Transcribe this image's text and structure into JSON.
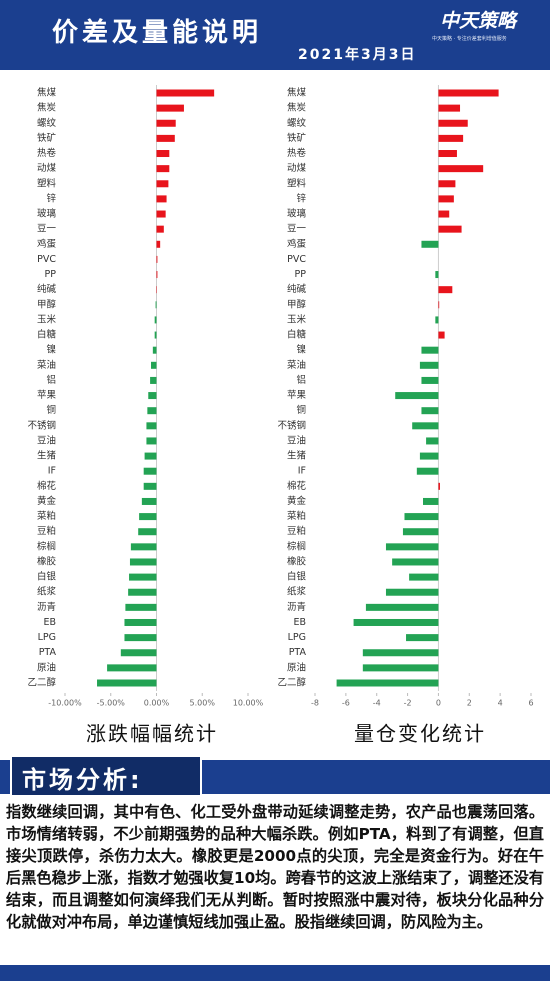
{
  "header": {
    "title": "价差及量能说明",
    "date": "2021年3月3日",
    "logo": "中天策略",
    "logo_sub": "中天策略 · 专注价差套利增值服务"
  },
  "chart_data": [
    {
      "type": "barh",
      "title": "涨跌幅幅统计",
      "categories": [
        "焦煤",
        "焦炭",
        "螺纹",
        "铁矿",
        "热卷",
        "动煤",
        "塑料",
        "锌",
        "玻璃",
        "豆一",
        "鸡蛋",
        "PVC",
        "PP",
        "纯碱",
        "甲醇",
        "玉米",
        "白糖",
        "镍",
        "菜油",
        "铝",
        "苹果",
        "铜",
        "不锈钢",
        "豆油",
        "生猪",
        "IF",
        "棉花",
        "黄金",
        "菜粕",
        "豆粕",
        "棕榈",
        "橡胶",
        "白银",
        "纸浆",
        "沥青",
        "EB",
        "LPG",
        "PTA",
        "原油",
        "乙二醇"
      ],
      "values": [
        6.3,
        3.0,
        2.1,
        2.0,
        1.4,
        1.4,
        1.3,
        1.1,
        1.0,
        0.8,
        0.4,
        0.1,
        0.1,
        0.05,
        -0.1,
        -0.2,
        -0.2,
        -0.4,
        -0.6,
        -0.7,
        -0.9,
        -1.0,
        -1.1,
        -1.1,
        -1.3,
        -1.4,
        -1.4,
        -1.6,
        -1.9,
        -2.0,
        -2.8,
        -2.9,
        -3.0,
        -3.1,
        -3.4,
        -3.5,
        -3.5,
        -3.9,
        -5.4,
        -6.5
      ],
      "positive_color": "#e8141c",
      "negative_color": "#23a354",
      "xlim": [
        -10,
        10
      ],
      "xticks": [
        {
          "value": -10,
          "label": "-10.00%"
        },
        {
          "value": -5,
          "label": "-5.00%"
        },
        {
          "value": 0,
          "label": "0.00%"
        },
        {
          "value": 5,
          "label": "5.00%"
        },
        {
          "value": 10,
          "label": "10.00%"
        }
      ]
    },
    {
      "type": "barh",
      "title": "量仓变化统计",
      "categories": [
        "焦煤",
        "焦炭",
        "螺纹",
        "铁矿",
        "热卷",
        "动煤",
        "塑料",
        "锌",
        "玻璃",
        "豆一",
        "鸡蛋",
        "PVC",
        "PP",
        "纯碱",
        "甲醇",
        "玉米",
        "白糖",
        "镍",
        "菜油",
        "铝",
        "苹果",
        "铜",
        "不锈钢",
        "豆油",
        "生猪",
        "IF",
        "棉花",
        "黄金",
        "菜粕",
        "豆粕",
        "棕榈",
        "橡胶",
        "白银",
        "纸浆",
        "沥青",
        "EB",
        "LPG",
        "PTA",
        "原油",
        "乙二醇"
      ],
      "values": [
        3.9,
        1.4,
        1.9,
        1.6,
        1.2,
        2.9,
        1.1,
        1.0,
        0.7,
        1.5,
        -1.1,
        0,
        -0.2,
        0.9,
        0.05,
        -0.2,
        0.4,
        -1.1,
        -1.2,
        -1.1,
        -2.8,
        -1.1,
        -1.7,
        -0.8,
        -1.2,
        -1.4,
        0.1,
        -1.0,
        -2.2,
        -2.3,
        -3.4,
        -3.0,
        -1.9,
        -3.4,
        -4.7,
        -5.5,
        -2.1,
        -4.9,
        -4.9,
        -6.6
      ],
      "positive_color": "#e8141c",
      "negative_color": "#23a354",
      "xlim": [
        -8,
        6
      ],
      "xticks": [
        -8,
        -6,
        -4,
        -2,
        0,
        2,
        4,
        6
      ]
    }
  ],
  "analysis": {
    "heading": "市场分析:",
    "text": "指数继续回调，其中有色、化工受外盘带动延续调整走势，农产品也震荡回落。市场情绪转弱，不少前期强势的品种大幅杀跌。例如PTA，料到了有调整，但直接尖顶跌停，杀伤力太大。橡胶更是2000点的尖顶，完全是资金行为。好在午后黑色稳步上涨，指数才勉强收复10均。跨春节的这波上涨结束了，调整还没有结束，而且调整如何演绎我们无从判断。暂时按照涨中震对待，板块分化品种分化就做对冲布局，单边谨慎短线加强止盈。股指继续回调，防风险为主。"
  }
}
